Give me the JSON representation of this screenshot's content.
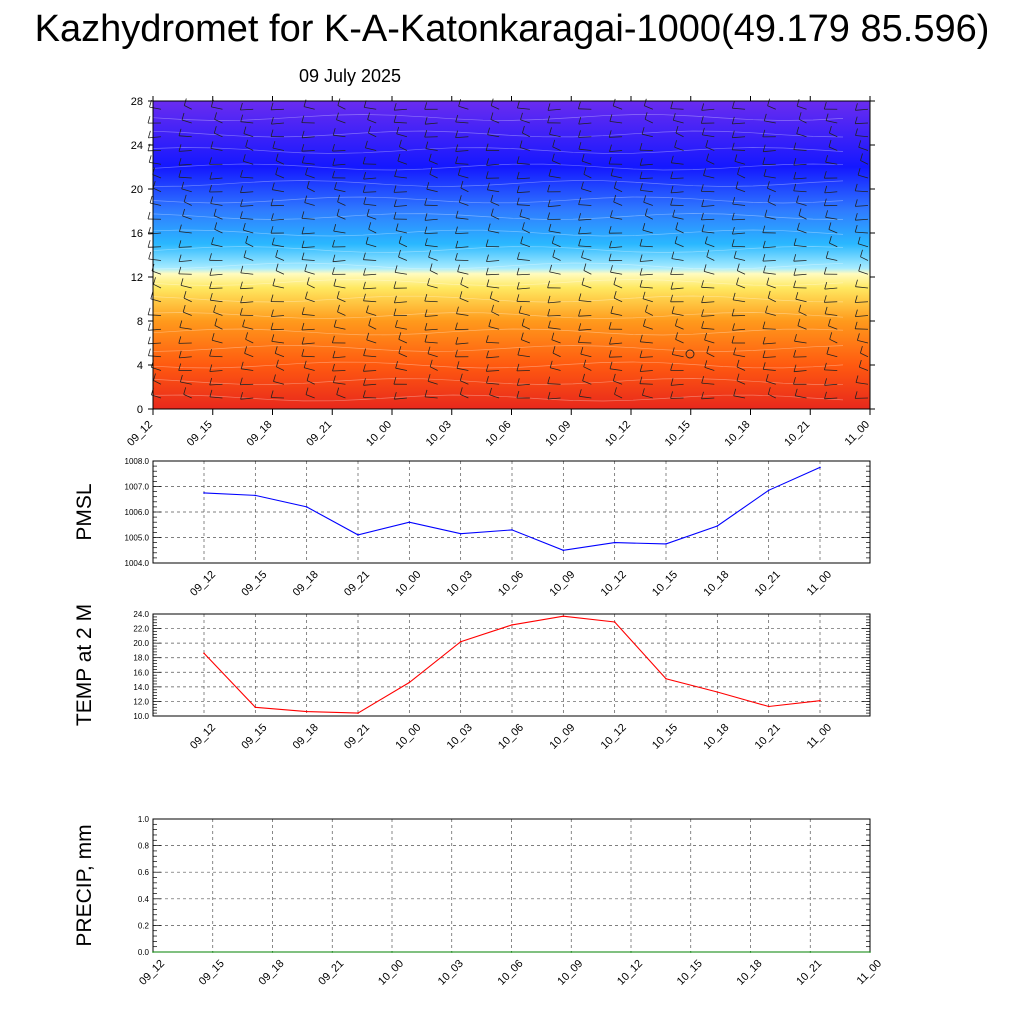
{
  "header": {
    "title": "Kazhydromet for K-A-Katonkaragai-1000(49.179 85.596)",
    "subtitle": "09 July 2025"
  },
  "time_labels": [
    "09_12",
    "09_15",
    "09_18",
    "09_21",
    "10_00",
    "10_03",
    "10_06",
    "10_09",
    "10_12",
    "10_15",
    "10_18",
    "10_21",
    "11_00"
  ],
  "chart_data": [
    {
      "type": "heatmap",
      "ylim": [
        0,
        28
      ],
      "yticks": [
        0,
        4,
        8,
        12,
        16,
        20,
        24,
        28
      ],
      "x": [
        "09_12",
        "09_15",
        "09_18",
        "09_21",
        "10_00",
        "10_03",
        "10_06",
        "10_09",
        "10_12",
        "10_15",
        "10_18",
        "10_21",
        "11_00"
      ],
      "color_bands": [
        {
          "level": 0,
          "color": "#e8281c"
        },
        {
          "level": 4,
          "color": "#ff5a10"
        },
        {
          "level": 8,
          "color": "#ff9a1c"
        },
        {
          "level": 11,
          "color": "#ffe860"
        },
        {
          "level": 12.3,
          "color": "#fffcc0"
        },
        {
          "level": 12.8,
          "color": "#a8ecff"
        },
        {
          "level": 15,
          "color": "#2ab8ff"
        },
        {
          "level": 18,
          "color": "#2f7cff"
        },
        {
          "level": 22,
          "color": "#1418ff"
        },
        {
          "level": 28,
          "color": "#6a2cf0"
        }
      ],
      "grid": false
    },
    {
      "type": "line",
      "ylabel": "PMSL",
      "ylim": [
        1004.0,
        1008.0
      ],
      "yticks": [
        1004.0,
        1005.0,
        1006.0,
        1007.0,
        1008.0
      ],
      "ytick_labels": [
        "1004.0",
        "1005.0",
        "1006.0",
        "1007.0",
        "1008.0"
      ],
      "x": [
        "09_12",
        "09_15",
        "09_18",
        "09_21",
        "10_00",
        "10_03",
        "10_06",
        "10_09",
        "10_12",
        "10_15",
        "10_18",
        "10_21",
        "11_00"
      ],
      "series": [
        {
          "values": [
            1006.75,
            1006.65,
            1006.2,
            1005.1,
            1005.6,
            1005.15,
            1005.3,
            1004.5,
            1004.8,
            1004.75,
            1005.45,
            1006.85,
            1007.75
          ],
          "color": "#0000ff"
        }
      ],
      "grid": true
    },
    {
      "type": "line",
      "ylabel": "TEMP at 2 M",
      "ylim": [
        10.0,
        24.0
      ],
      "yticks": [
        10.0,
        12.0,
        14.0,
        16.0,
        18.0,
        20.0,
        22.0,
        24.0
      ],
      "ytick_labels": [
        "10.0",
        "12.0",
        "14.0",
        "16.0",
        "18.0",
        "20.0",
        "22.0",
        "24.0"
      ],
      "x": [
        "09_12",
        "09_15",
        "09_18",
        "09_21",
        "10_00",
        "10_03",
        "10_06",
        "10_09",
        "10_12",
        "10_15",
        "10_18",
        "10_21",
        "11_00"
      ],
      "series": [
        {
          "values": [
            18.6,
            11.2,
            10.6,
            10.4,
            14.6,
            20.2,
            22.5,
            23.7,
            22.9,
            15.1,
            13.3,
            11.3,
            12.1
          ],
          "color": "#ff0000"
        }
      ],
      "grid": true
    },
    {
      "type": "line",
      "ylabel": "PRECIP, mm",
      "ylim": [
        0.0,
        1.0
      ],
      "yticks": [
        0.0,
        0.2,
        0.4,
        0.6,
        0.8,
        1.0
      ],
      "ytick_labels": [
        "0.0",
        "0.2",
        "0.4",
        "0.6",
        "0.8",
        "1.0"
      ],
      "x": [
        "09_12",
        "09_15",
        "09_18",
        "09_21",
        "10_00",
        "10_03",
        "10_06",
        "10_09",
        "10_12",
        "10_15",
        "10_18",
        "10_21",
        "11_00"
      ],
      "series": [
        {
          "values": [
            0,
            0,
            0,
            0,
            0,
            0,
            0,
            0,
            0,
            0,
            0,
            0,
            0
          ],
          "color": "#008000"
        }
      ],
      "grid": true
    }
  ]
}
